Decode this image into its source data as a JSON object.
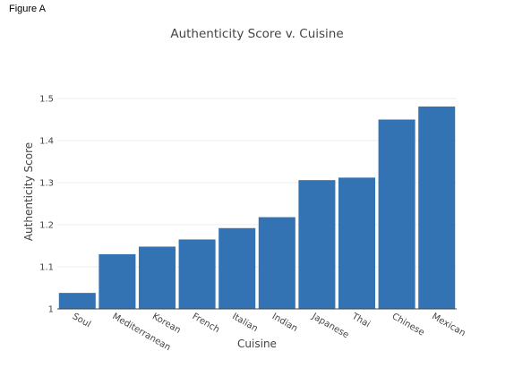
{
  "figure_label": "Figure A",
  "chart_data": {
    "type": "bar",
    "title": "Authenticity Score v. Cuisine",
    "xlabel": "Cuisine",
    "ylabel": "Authenticity Score",
    "categories": [
      "Soul",
      "Mediterranean",
      "Korean",
      "French",
      "Italian",
      "Indian",
      "Japanese",
      "Thai",
      "Chinese",
      "Mexican"
    ],
    "values": [
      1.038,
      1.13,
      1.148,
      1.165,
      1.192,
      1.218,
      1.306,
      1.312,
      1.45,
      1.481
    ],
    "ylim": [
      1.0,
      1.5
    ],
    "yticks": [
      1,
      1.1,
      1.2,
      1.3,
      1.4,
      1.5
    ],
    "ytick_labels": [
      "1",
      "1.1",
      "1.2",
      "1.3",
      "1.4",
      "1.5"
    ],
    "grid": true,
    "bar_color": "#3473b3"
  }
}
